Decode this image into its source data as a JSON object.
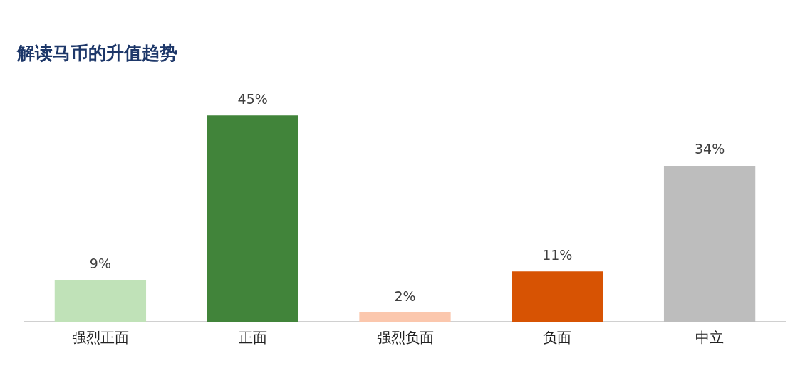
{
  "chart_data": {
    "type": "bar",
    "title": "解读马币的升值趋势",
    "categories": [
      "强烈正面",
      "正面",
      "强烈负面",
      "负面",
      "中立"
    ],
    "values": [
      9,
      45,
      2,
      11,
      34
    ],
    "colors": [
      "#c0e2b8",
      "#41843a",
      "#fbc7ad",
      "#d75303",
      "#bdbdbd"
    ],
    "value_labels": [
      "9%",
      "45%",
      "2%",
      "11%",
      "34%"
    ],
    "grid": false,
    "legend": false
  }
}
